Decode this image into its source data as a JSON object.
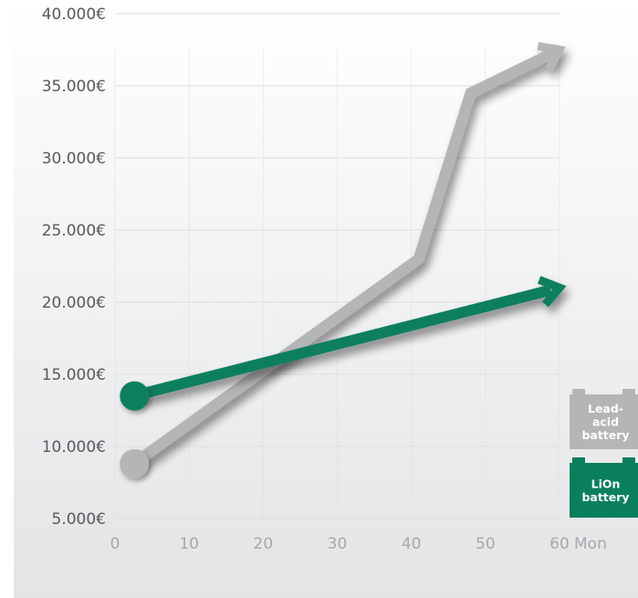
{
  "chart_data": {
    "type": "line",
    "title": "",
    "x_unit_label": "Mon",
    "y_tick_labels": [
      "5.000€",
      "10.000€",
      "15.000€",
      "20.000€",
      "25.000€",
      "30.000€",
      "35.000€",
      "40.000€"
    ],
    "x_tick_labels": [
      "0",
      "10",
      "20",
      "30",
      "40",
      "50",
      "60"
    ],
    "xlim": [
      0,
      60
    ],
    "ylim": [
      5000,
      40000
    ],
    "grid": true,
    "legend_position": "right",
    "series": [
      {
        "legend_lines": [
          "Lead-",
          "acid",
          "battery"
        ],
        "color": "#b3b5b7",
        "points": [
          [
            2.5,
            8800
          ],
          [
            41,
            23000
          ],
          [
            48,
            34500
          ],
          [
            60,
            37500
          ]
        ]
      },
      {
        "legend_lines": [
          "LiOn",
          "battery"
        ],
        "color": "#0a7f5e",
        "points": [
          [
            2.5,
            13500
          ],
          [
            60,
            21000
          ]
        ]
      }
    ]
  },
  "colors": {
    "background_gradient_top": "#ffffff",
    "background_gradient_bottom": "#e3e4e5",
    "grid": "#dcdedf",
    "lead_acid": "#b3b5b7",
    "lion": "#0a7f5e"
  }
}
